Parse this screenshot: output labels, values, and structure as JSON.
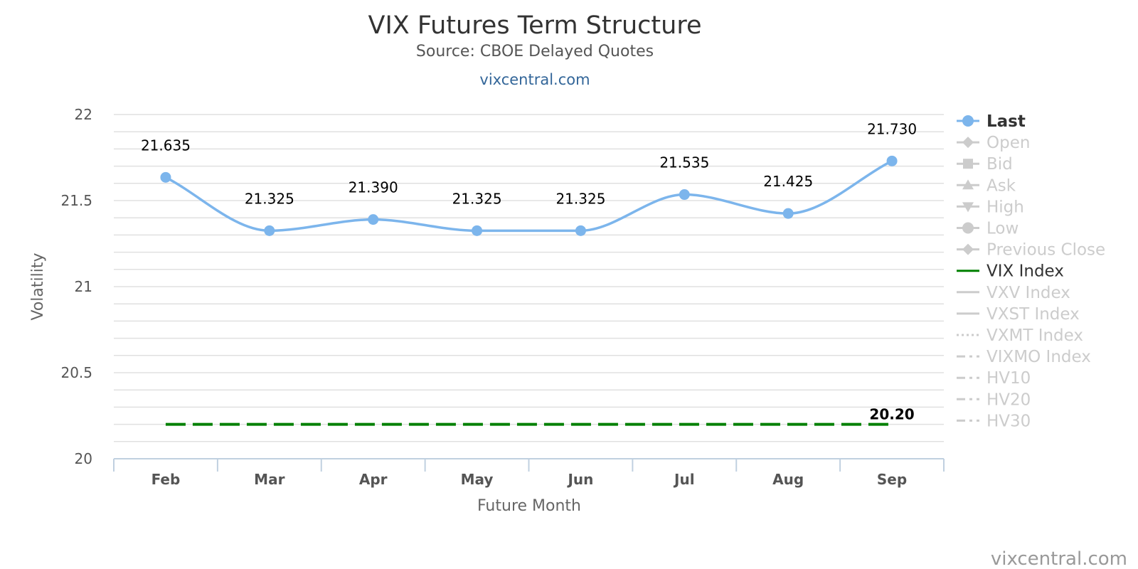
{
  "title": "VIX Futures Term Structure",
  "subtitle": "Source: CBOE Delayed Quotes",
  "credit_top": "vixcentral.com",
  "credit_bottom": "vixcentral.com",
  "colors": {
    "last": "#7cb5ec",
    "vix": "#008000",
    "grid": "#e0e0e0",
    "axis": "#c0d0e0",
    "hidden": "#cccccc"
  },
  "legend": [
    {
      "label": "Last",
      "symbol": "circle-line",
      "active": true
    },
    {
      "label": "Open",
      "symbol": "diamond-line",
      "active": false
    },
    {
      "label": "Bid",
      "symbol": "square-line",
      "active": false
    },
    {
      "label": "Ask",
      "symbol": "triangle-line",
      "active": false
    },
    {
      "label": "High",
      "symbol": "triangle-down-line",
      "active": false
    },
    {
      "label": "Low",
      "symbol": "circle-line",
      "active": false
    },
    {
      "label": "Previous Close",
      "symbol": "diamond-line",
      "active": false
    },
    {
      "label": "VIX Index",
      "symbol": "solid-line",
      "active": true
    },
    {
      "label": "VXV Index",
      "symbol": "solid-line",
      "active": false
    },
    {
      "label": "VXST Index",
      "symbol": "solid-line",
      "active": false
    },
    {
      "label": "VXMT Index",
      "symbol": "dotted-line",
      "active": false
    },
    {
      "label": "VIXMO Index",
      "symbol": "dashdot-line",
      "active": false
    },
    {
      "label": "HV10",
      "symbol": "dashdot-line",
      "active": false
    },
    {
      "label": "HV20",
      "symbol": "dashdot-line",
      "active": false
    },
    {
      "label": "HV30",
      "symbol": "dashdot-line",
      "active": false
    }
  ],
  "chart_data": {
    "type": "line",
    "title": "VIX Futures Term Structure",
    "subtitle": "Source: CBOE Delayed Quotes",
    "xlabel": "Future Month",
    "ylabel": "Volatility",
    "categories": [
      "Feb",
      "Mar",
      "Apr",
      "May",
      "Jun",
      "Jul",
      "Aug",
      "Sep"
    ],
    "ylim": [
      20,
      22
    ],
    "yticks": [
      "20",
      "20.5",
      "21",
      "21.5",
      "22"
    ],
    "grid": true,
    "legend_position": "right",
    "series": [
      {
        "name": "Last",
        "values": [
          21.635,
          21.325,
          21.39,
          21.325,
          21.325,
          21.535,
          21.425,
          21.73
        ],
        "labels": [
          "21.635",
          "21.325",
          "21.390",
          "21.325",
          "21.325",
          "21.535",
          "21.425",
          "21.730"
        ],
        "style": "smooth-line-with-markers"
      },
      {
        "name": "VIX Index",
        "values": [
          20.2,
          20.2,
          20.2,
          20.2,
          20.2,
          20.2,
          20.2,
          20.2
        ],
        "end_label": "20.20",
        "style": "dashed"
      }
    ]
  }
}
